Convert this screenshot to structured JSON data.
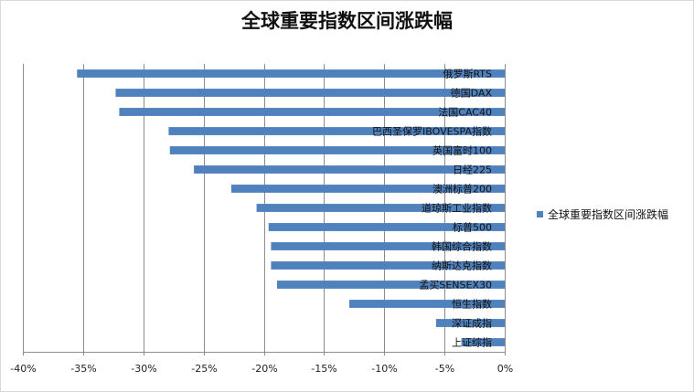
{
  "chart_data": {
    "type": "bar",
    "orientation": "horizontal",
    "title": "全球重要指数区间涨跌幅",
    "categories": [
      "俄罗斯RTS",
      "德国DAX",
      "法国CAC40",
      "巴西圣保罗IBOVESPA指数",
      "英国富时100",
      "日经225",
      "澳洲标普200",
      "道琼斯工业指数",
      "标普500",
      "韩国综合指数",
      "纳斯达克指数",
      "孟买SENSEX30",
      "恒生指数",
      "深证成指",
      "上证综指"
    ],
    "series": [
      {
        "name": "全球重要指数区间涨跌幅",
        "color": "#4f81bd",
        "values": [
          -35.5,
          -32.3,
          -32.0,
          -27.9,
          -27.8,
          -25.8,
          -22.7,
          -20.6,
          -19.6,
          -19.4,
          -19.4,
          -18.9,
          -12.9,
          -5.7,
          -3.6
        ]
      }
    ],
    "xlim": [
      -40,
      0
    ],
    "xticks": [
      -40,
      -35,
      -30,
      -25,
      -20,
      -15,
      -10,
      -5,
      0
    ],
    "xtick_labels": [
      "-40%",
      "-35%",
      "-30%",
      "-25%",
      "-20%",
      "-15%",
      "-10%",
      "-5%",
      "0%"
    ],
    "grid": true,
    "legend_position": "right",
    "xlabel": "",
    "ylabel": ""
  }
}
